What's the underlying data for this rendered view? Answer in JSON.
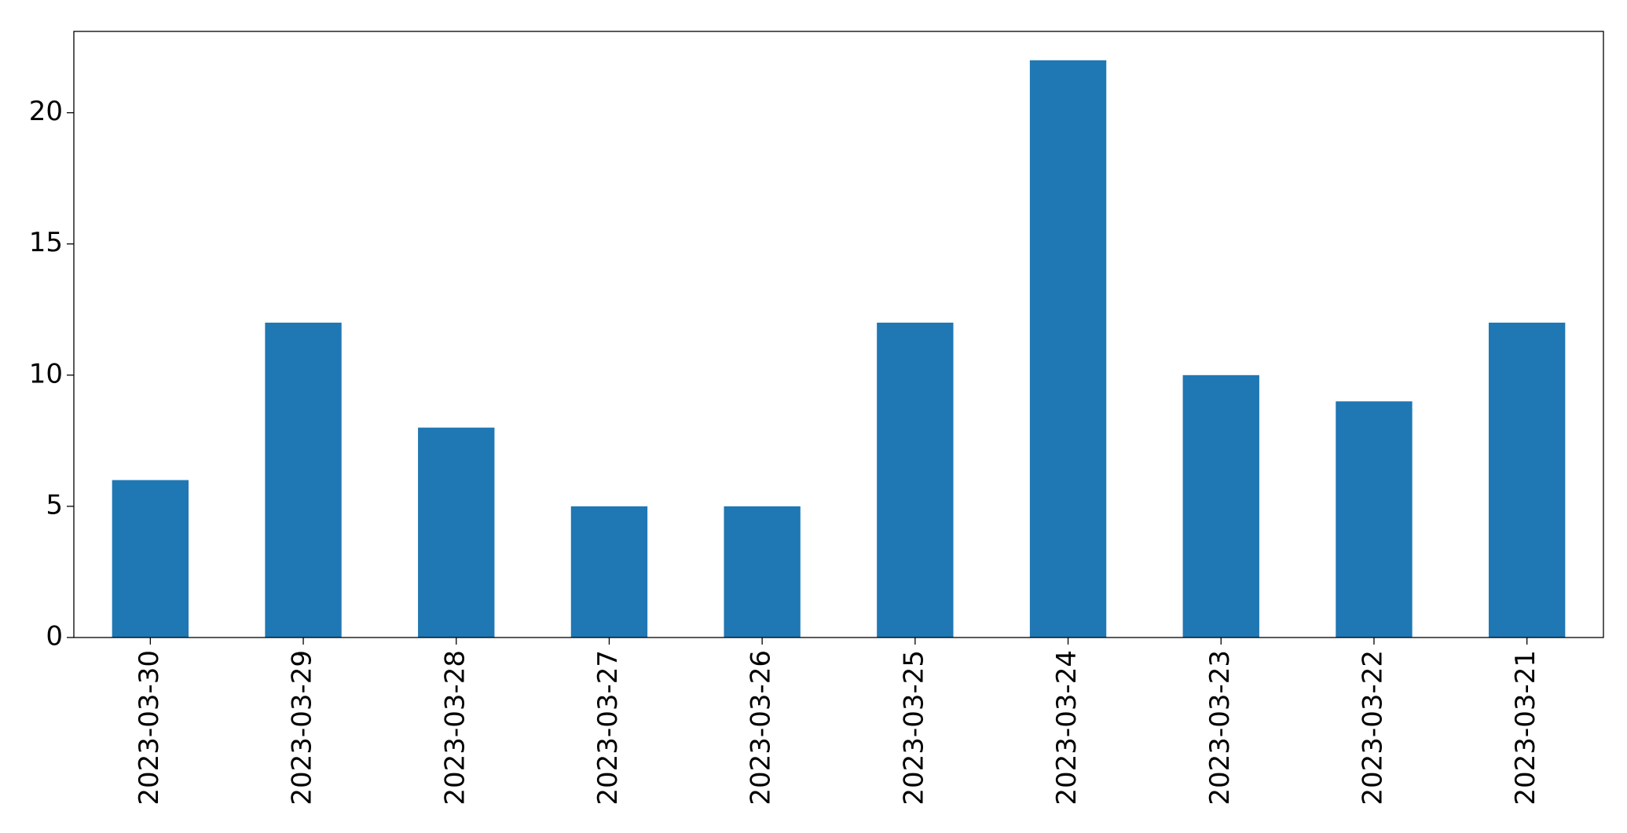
{
  "chart_data": {
    "type": "bar",
    "categories": [
      "2023-03-30",
      "2023-03-29",
      "2023-03-28",
      "2023-03-27",
      "2023-03-26",
      "2023-03-25",
      "2023-03-24",
      "2023-03-23",
      "2023-03-22",
      "2023-03-21"
    ],
    "values": [
      6,
      12,
      8,
      5,
      5,
      12,
      22,
      10,
      9,
      12
    ],
    "color": "#1f77b4",
    "ylim": [
      0,
      23.1
    ],
    "yticks": [
      0,
      5,
      10,
      15,
      20
    ],
    "grid": false
  }
}
